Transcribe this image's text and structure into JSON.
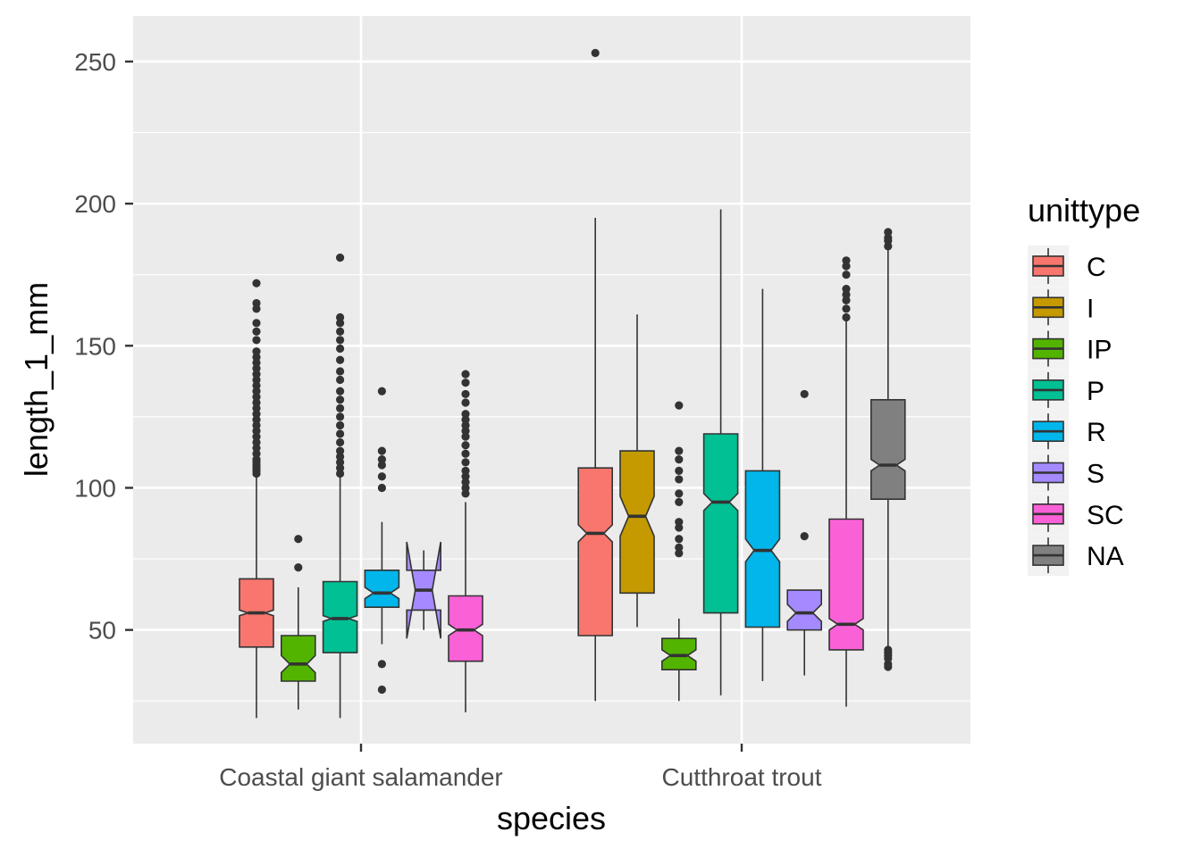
{
  "chart_data": {
    "type": "boxplot",
    "notched": true,
    "xlabel": "species",
    "ylabel": "length_1_mm",
    "ylim": [
      10,
      266
    ],
    "yticks": [
      50,
      100,
      150,
      200,
      250
    ],
    "grid": true,
    "legend": {
      "title": "unittype",
      "position": "right",
      "entries": [
        {
          "label": "C",
          "color": "#F8766D"
        },
        {
          "label": "I",
          "color": "#C49A00"
        },
        {
          "label": "IP",
          "color": "#53B400"
        },
        {
          "label": "P",
          "color": "#00C094"
        },
        {
          "label": "R",
          "color": "#00B6EB"
        },
        {
          "label": "S",
          "color": "#A58AFF"
        },
        {
          "label": "SC",
          "color": "#FB61D7"
        },
        {
          "label": "NA",
          "color": "#808080"
        }
      ]
    },
    "categories": [
      "Coastal giant salamander",
      "Cutthroat trout"
    ],
    "groups": [
      {
        "category": "Coastal giant salamander",
        "boxes": [
          {
            "unittype": "C",
            "min": 19,
            "q1": 44,
            "median": 56,
            "q3": 68,
            "max": 104,
            "notch_low": 55,
            "notch_high": 57,
            "outliers": [
              105,
              106,
              107,
              108,
              109,
              110,
              112,
              114,
              116,
              118,
              120,
              122,
              124,
              126,
              128,
              130,
              132,
              134,
              136,
              138,
              140,
              142,
              144,
              146,
              148,
              152,
              155,
              158,
              163,
              165,
              172
            ]
          },
          {
            "unittype": "IP",
            "min": 22,
            "q1": 32,
            "median": 38,
            "q3": 48,
            "max": 65,
            "notch_low": 35,
            "notch_high": 41,
            "outliers": [
              72,
              82
            ]
          },
          {
            "unittype": "P",
            "min": 19,
            "q1": 42,
            "median": 54,
            "q3": 67,
            "max": 104,
            "notch_low": 53,
            "notch_high": 55,
            "outliers": [
              105,
              107,
              109,
              111,
              113,
              116,
              119,
              122,
              125,
              128,
              131,
              134,
              138,
              141,
              145,
              149,
              152,
              155,
              158,
              160,
              181
            ]
          },
          {
            "unittype": "R",
            "min": 45,
            "q1": 58,
            "median": 63,
            "q3": 71,
            "max": 88,
            "notch_low": 61,
            "notch_high": 65,
            "outliers": [
              29,
              38,
              100,
              104,
              108,
              110,
              113,
              134
            ]
          },
          {
            "unittype": "S",
            "min": 50,
            "q1": 57,
            "median": 64,
            "q3": 71,
            "max": 78,
            "notch_low": 47,
            "notch_high": 81,
            "outliers": []
          },
          {
            "unittype": "SC",
            "min": 21,
            "q1": 39,
            "median": 50,
            "q3": 62,
            "max": 95,
            "notch_low": 48,
            "notch_high": 52,
            "outliers": [
              98,
              100,
              102,
              104,
              106,
              109,
              112,
              115,
              118,
              120,
              122,
              124,
              126,
              130,
              133,
              137,
              140
            ]
          }
        ]
      },
      {
        "category": "Cutthroat trout",
        "boxes": [
          {
            "unittype": "C",
            "min": 25,
            "q1": 48,
            "median": 84,
            "q3": 107,
            "max": 195,
            "notch_low": 81,
            "notch_high": 87,
            "outliers": [
              253
            ]
          },
          {
            "unittype": "I",
            "min": 51,
            "q1": 63,
            "median": 90,
            "q3": 113,
            "max": 161,
            "notch_low": 83,
            "notch_high": 97,
            "outliers": []
          },
          {
            "unittype": "IP",
            "min": 25,
            "q1": 36,
            "median": 41,
            "q3": 47,
            "max": 54,
            "notch_low": 39,
            "notch_high": 43,
            "outliers": [
              77,
              79,
              82,
              86,
              88,
              95,
              98,
              103,
              106,
              110,
              113,
              129
            ]
          },
          {
            "unittype": "P",
            "min": 27,
            "q1": 56,
            "median": 95,
            "q3": 119,
            "max": 198,
            "notch_low": 92,
            "notch_high": 98,
            "outliers": []
          },
          {
            "unittype": "R",
            "min": 32,
            "q1": 51,
            "median": 78,
            "q3": 106,
            "max": 170,
            "notch_low": 74,
            "notch_high": 82,
            "outliers": []
          },
          {
            "unittype": "S",
            "min": 34,
            "q1": 50,
            "median": 56,
            "q3": 64,
            "max": 64,
            "notch_low": 53,
            "notch_high": 59,
            "outliers": [
              83,
              133
            ]
          },
          {
            "unittype": "SC",
            "min": 23,
            "q1": 43,
            "median": 52,
            "q3": 89,
            "max": 159,
            "notch_low": 50,
            "notch_high": 54,
            "outliers": [
              160,
              163,
              166,
              168,
              170,
              175,
              178,
              180
            ]
          },
          {
            "unittype": "NA",
            "min": 44,
            "q1": 96,
            "median": 108,
            "q3": 131,
            "max": 184,
            "notch_low": 106,
            "notch_high": 110,
            "outliers": [
              37,
              38,
              40,
              41,
              42,
              43,
              185,
              187,
              188,
              190
            ]
          }
        ]
      }
    ]
  }
}
